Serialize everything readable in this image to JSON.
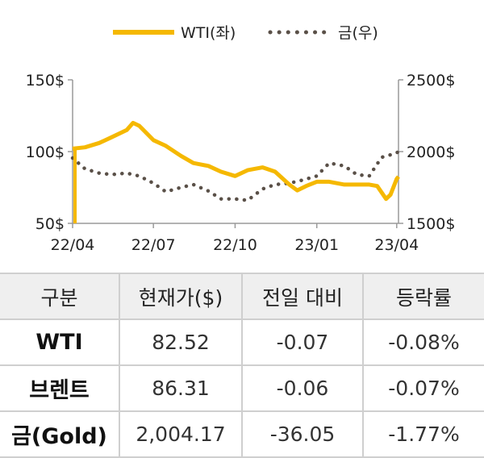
{
  "chart_data": {
    "type": "line",
    "x_ticks": [
      "22/04",
      "22/07",
      "22/10",
      "23/01",
      "23/04"
    ],
    "y_left": {
      "ticks": [
        "150$",
        "100$",
        "50$"
      ],
      "range": [
        50,
        150
      ]
    },
    "y_right": {
      "ticks": [
        "2500$",
        "2000$",
        "1500$"
      ],
      "range": [
        1500,
        2500
      ]
    },
    "legend": {
      "position": "top-center",
      "items": [
        "WTI(좌)",
        "금(우)"
      ]
    },
    "grid": false,
    "series": [
      {
        "name": "WTI(좌)",
        "axis": "left",
        "style": "solid",
        "color": "#f5b800",
        "x": [
          "2022-04-01",
          "2022-04-15",
          "2022-05-01",
          "2022-05-15",
          "2022-06-01",
          "2022-06-08",
          "2022-06-15",
          "2022-07-01",
          "2022-07-15",
          "2022-08-01",
          "2022-08-15",
          "2022-09-01",
          "2022-09-15",
          "2022-10-01",
          "2022-10-15",
          "2022-11-01",
          "2022-11-15",
          "2022-12-01",
          "2022-12-10",
          "2022-12-20",
          "2023-01-01",
          "2023-01-15",
          "2023-02-01",
          "2023-02-15",
          "2023-03-01",
          "2023-03-10",
          "2023-03-20",
          "2023-03-25",
          "2023-04-01",
          "2023-04-03"
        ],
        "values": [
          102,
          103,
          106,
          110,
          115,
          120,
          118,
          108,
          104,
          97,
          92,
          90,
          86,
          83,
          87,
          89,
          86,
          77,
          73,
          76,
          79,
          79,
          77,
          77,
          77,
          76,
          67,
          70,
          81,
          82.52
        ]
      },
      {
        "name": "금(우)",
        "axis": "right",
        "style": "dotted",
        "color": "#5a5048",
        "x": [
          "2022-04-01",
          "2022-04-15",
          "2022-05-01",
          "2022-05-15",
          "2022-06-01",
          "2022-06-15",
          "2022-07-01",
          "2022-07-15",
          "2022-08-01",
          "2022-08-15",
          "2022-09-01",
          "2022-09-15",
          "2022-10-01",
          "2022-10-15",
          "2022-11-01",
          "2022-11-15",
          "2022-12-01",
          "2022-12-15",
          "2023-01-01",
          "2023-01-15",
          "2023-02-01",
          "2023-02-15",
          "2023-03-01",
          "2023-03-15",
          "2023-04-01",
          "2023-04-03"
        ],
        "values": [
          1955,
          1880,
          1850,
          1840,
          1850,
          1830,
          1780,
          1720,
          1750,
          1770,
          1725,
          1670,
          1670,
          1660,
          1740,
          1770,
          1780,
          1800,
          1830,
          1920,
          1900,
          1840,
          1830,
          1960,
          1990,
          2004.17
        ]
      }
    ]
  },
  "table": {
    "headers": [
      "구분",
      "현재가($)",
      "전일 대비",
      "등락률"
    ],
    "rows": [
      {
        "name": "WTI",
        "price": "82.52",
        "change": "-0.07",
        "rate": "-0.08%"
      },
      {
        "name": "브렌트",
        "price": "86.31",
        "change": "-0.06",
        "rate": "-0.07%"
      },
      {
        "name": "금(Gold)",
        "price": "2,004.17",
        "change": "-36.05",
        "rate": "-1.77%"
      }
    ]
  }
}
